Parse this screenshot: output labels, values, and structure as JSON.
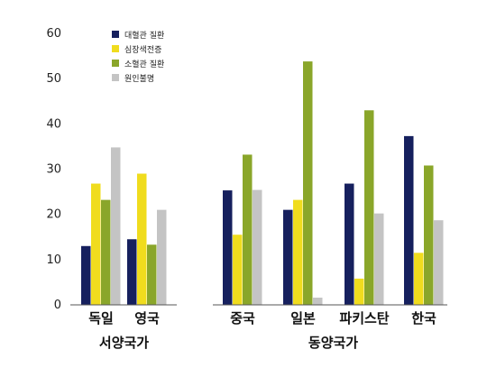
{
  "chart_data": {
    "type": "bar",
    "categories": [
      "독일",
      "영국",
      "중국",
      "일본",
      "파키스탄",
      "한국"
    ],
    "groups": [
      {
        "label": "서양국가",
        "categories": [
          "독일",
          "영국"
        ]
      },
      {
        "label": "동양국가",
        "categories": [
          "중국",
          "일본",
          "파키스탄",
          "한국"
        ]
      }
    ],
    "series": [
      {
        "name": "대혈관 질환",
        "color": "#16205e",
        "values": [
          13,
          14.5,
          25.3,
          21,
          26.8,
          37.3
        ]
      },
      {
        "name": "심장색전증",
        "color": "#f0dc1e",
        "values": [
          26.8,
          29,
          15.5,
          23.2,
          5.8,
          11.5
        ]
      },
      {
        "name": "소혈관 질환",
        "color": "#8aa62a",
        "values": [
          23.2,
          13.3,
          33.2,
          53.8,
          43,
          30.8
        ]
      },
      {
        "name": "원인불명",
        "color": "#c4c4c4",
        "values": [
          34.8,
          21,
          25.4,
          1.6,
          20.2,
          18.7
        ]
      }
    ],
    "yticks": [
      0,
      10,
      20,
      30,
      40,
      50,
      60
    ],
    "ylim": [
      0,
      60
    ],
    "legend_position": "top-left inside plot",
    "grid": false
  }
}
